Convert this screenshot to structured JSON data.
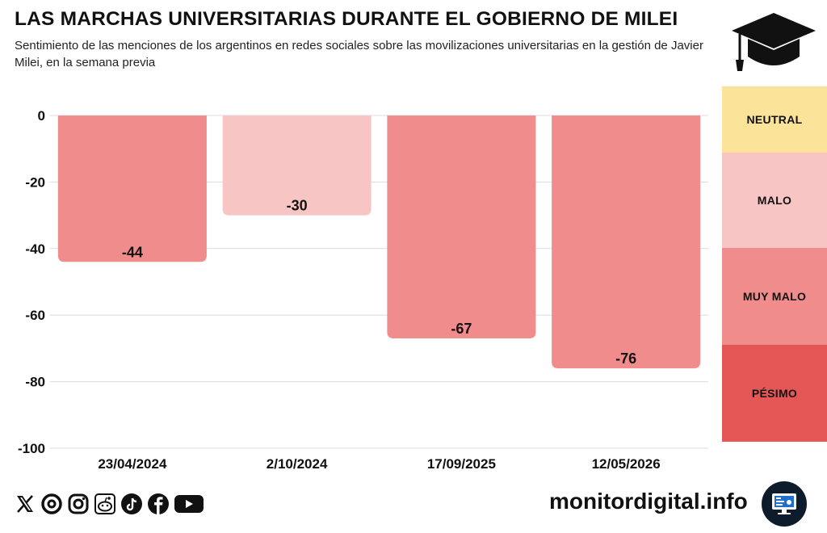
{
  "header": {
    "title": "LAS MARCHAS UNIVERSITARIAS DURANTE EL GOBIERNO DE MILEI",
    "subtitle": "Sentimiento de las menciones de los argentinos en redes sociales sobre las movilizaciones universitarias en la gestión de Javier Milei, en la semana previa"
  },
  "chart_data": {
    "type": "bar",
    "title": "LAS MARCHAS UNIVERSITARIAS DURANTE EL GOBIERNO DE MILEI",
    "subtitle": "Sentimiento de las menciones de los argentinos en redes sociales sobre las movilizaciones universitarias en la gestión de Javier Milei, en la semana previa",
    "categories": [
      "23/04/2024",
      "2/10/2024",
      "17/09/2025",
      "12/05/2026"
    ],
    "values": [
      -44,
      -30,
      -67,
      -76
    ],
    "value_labels": [
      "-44",
      "-30",
      "-67",
      "-76"
    ],
    "bar_colors": [
      "#f08c8c",
      "#f6c5c4",
      "#f08c8c",
      "#f08c8c"
    ],
    "ylim": [
      -100,
      0
    ],
    "yticks": [
      0,
      -20,
      -40,
      -60,
      -80,
      -100
    ],
    "ytick_labels": [
      "0",
      "-20",
      "-40",
      "-60",
      "-80",
      "-100"
    ],
    "xlabel": "",
    "ylabel": "",
    "grid": true,
    "legend_position": "right"
  },
  "legend": {
    "items": [
      {
        "label": "NEUTRAL",
        "color": "#fbe49a"
      },
      {
        "label": "MALO",
        "color": "#f6c5c4"
      },
      {
        "label": "MUY MALO",
        "color": "#f08c8c"
      },
      {
        "label": "PÉSIMO",
        "color": "#e55757"
      }
    ]
  },
  "footer": {
    "brand": "monitordigital.info",
    "social_icons": [
      "x-icon",
      "threads-icon",
      "instagram-icon",
      "reddit-icon",
      "tiktok-icon",
      "facebook-icon",
      "youtube-icon"
    ]
  }
}
